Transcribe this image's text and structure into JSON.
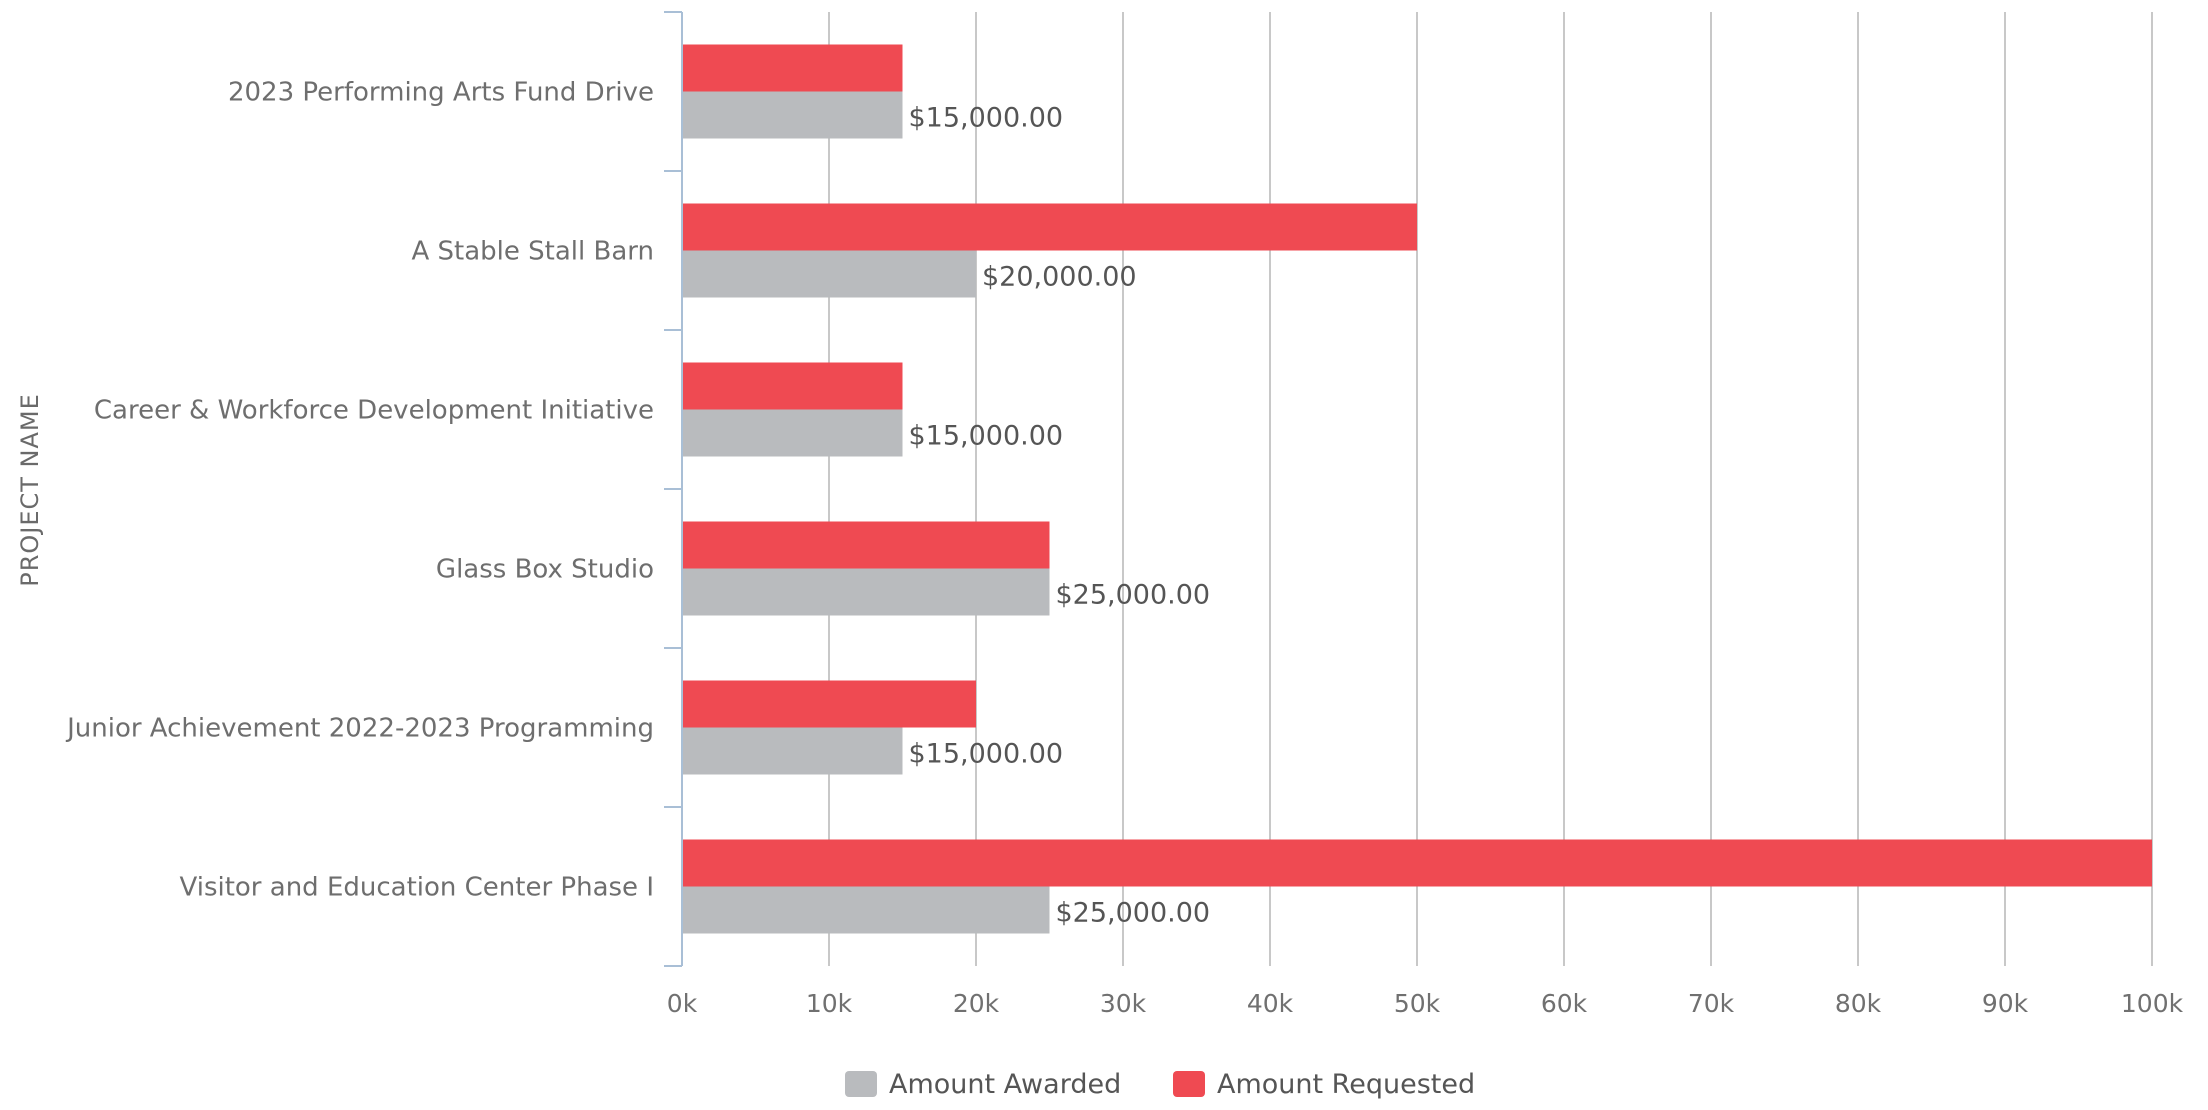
{
  "chart_data": {
    "type": "bar",
    "orientation": "horizontal",
    "ylabel": "PROJECT NAME",
    "xlabel": "",
    "categories": [
      "2023 Performing Arts Fund Drive",
      "A Stable Stall Barn",
      "Career & Workforce Development Initiative",
      "Glass Box Studio",
      "Junior Achievement 2022-2023 Programming",
      "Visitor and Education Center Phase I"
    ],
    "series": [
      {
        "name": "Amount Requested",
        "color": "#ef4a52",
        "values": [
          15000,
          50000,
          15000,
          25000,
          20000,
          100000
        ]
      },
      {
        "name": "Amount Awarded",
        "color": "#b9bbbe",
        "values": [
          15000,
          20000,
          15000,
          25000,
          15000,
          25000
        ],
        "data_labels": [
          "$15,000.00",
          "$20,000.00",
          "$15,000.00",
          "$25,000.00",
          "$15,000.00",
          "$25,000.00"
        ]
      }
    ],
    "xlim": [
      0,
      100000
    ],
    "xticks": [
      0,
      10000,
      20000,
      30000,
      40000,
      50000,
      60000,
      70000,
      80000,
      90000,
      100000
    ],
    "xtick_labels": [
      "0k",
      "10k",
      "20k",
      "30k",
      "40k",
      "50k",
      "60k",
      "70k",
      "80k",
      "90k",
      "100k"
    ],
    "grid": true,
    "legend": {
      "placement": "bottom-center",
      "items": [
        {
          "name": "Amount Awarded",
          "color": "#b9bbbe"
        },
        {
          "name": "Amount Requested",
          "color": "#ef4a52"
        }
      ]
    }
  }
}
